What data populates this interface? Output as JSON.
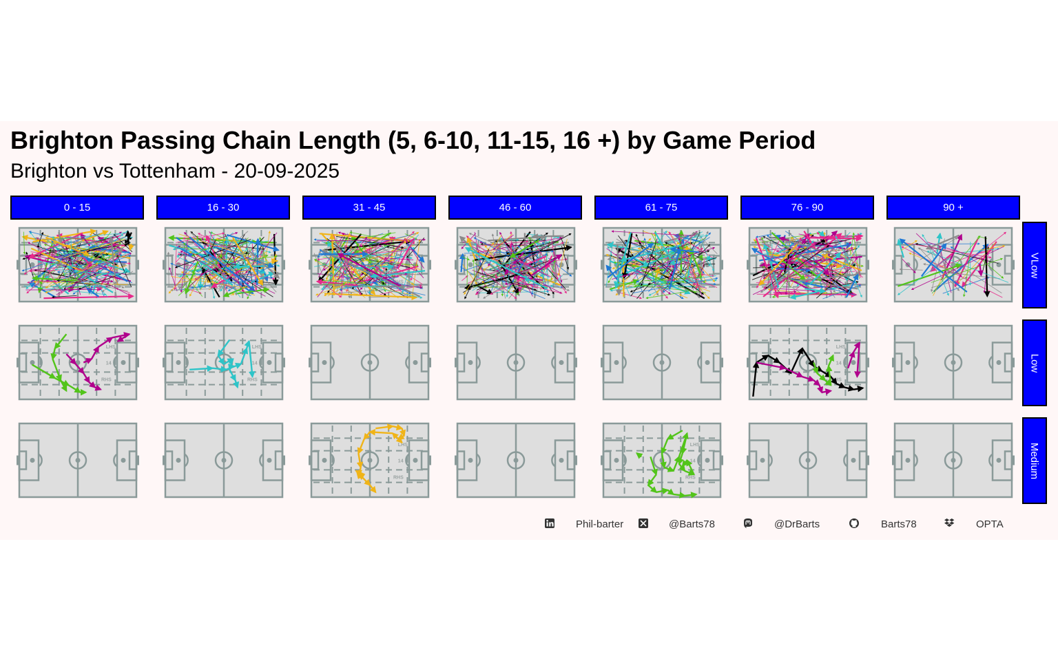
{
  "title": "Brighton Passing Chain Length (5, 6-10, 11-15, 16 +) by Game Period",
  "subtitle": "Brighton vs Tottenham - 20-09-2025",
  "colors": {
    "strip": "#0000ff",
    "pitch_fill": "#dedede",
    "pitch_line": "#8a9a99",
    "background": "#fff7f7",
    "series_palette": [
      "#e7298a",
      "#f0b418",
      "#1f78d4",
      "#2ec4c8",
      "#52c41a",
      "#b0008c",
      "#000000",
      "#8a8a8a"
    ]
  },
  "chart_data": {
    "type": "pass-map small multiples",
    "facet_columns": [
      "0 - 15",
      "16 - 30",
      "31 - 45",
      "46 - 60",
      "61 - 75",
      "76 - 90",
      "90 +"
    ],
    "facet_rows": [
      "VLow",
      "Low",
      "Medium"
    ],
    "zone_labels": {
      "left_half_space": "LHS",
      "centre": "14",
      "right_half_space": "RHS"
    },
    "x_range": [
      0,
      100
    ],
    "y_range": [
      0,
      100
    ],
    "panels": [
      {
        "row": "VLow",
        "col": "0 - 15",
        "density": "dense",
        "seed": 11
      },
      {
        "row": "VLow",
        "col": "16 - 30",
        "density": "dense",
        "seed": 23
      },
      {
        "row": "VLow",
        "col": "31 - 45",
        "density": "dense",
        "seed": 37
      },
      {
        "row": "VLow",
        "col": "46 - 60",
        "density": "dense",
        "seed": 41
      },
      {
        "row": "VLow",
        "col": "61 - 75",
        "density": "dense",
        "seed": 53
      },
      {
        "row": "VLow",
        "col": "76 - 90",
        "density": "dense",
        "seed": 67
      },
      {
        "row": "VLow",
        "col": "90 +",
        "density": "sparse",
        "seed": 79
      },
      {
        "row": "Low",
        "col": "0 - 15",
        "zones": true,
        "chains": [
          {
            "color": "#52c41a",
            "points": [
              [
                10,
                47
              ],
              [
                30,
                28
              ],
              [
                42,
                18
              ],
              [
                52,
                8
              ],
              [
                57,
                8
              ]
            ]
          },
          {
            "color": "#52c41a",
            "points": [
              [
                40,
                90
              ],
              [
                30,
                70
              ],
              [
                28,
                55
              ],
              [
                35,
                25
              ],
              [
                40,
                10
              ]
            ]
          },
          {
            "color": "#b0008c",
            "points": [
              [
                55,
                50
              ],
              [
                62,
                55
              ],
              [
                68,
                72
              ],
              [
                80,
                85
              ],
              [
                95,
                90
              ],
              [
                85,
                80
              ]
            ]
          },
          {
            "color": "#b0008c",
            "points": [
              [
                40,
                62
              ],
              [
                48,
                48
              ],
              [
                55,
                35
              ],
              [
                60,
                22
              ],
              [
                65,
                15
              ],
              [
                70,
                12
              ]
            ]
          }
        ]
      },
      {
        "row": "Low",
        "col": "16 - 30",
        "zones": true,
        "chains": [
          {
            "color": "#2ec4c8",
            "points": [
              [
                55,
                82
              ],
              [
                45,
                60
              ],
              [
                50,
                48
              ],
              [
                58,
                55
              ],
              [
                55,
                40
              ],
              [
                60,
                25
              ],
              [
                62,
                15
              ]
            ]
          },
          {
            "color": "#2ec4c8",
            "points": [
              [
                20,
                40
              ],
              [
                40,
                42
              ],
              [
                52,
                40
              ],
              [
                65,
                48
              ],
              [
                70,
                70
              ],
              [
                72,
                80
              ],
              [
                75,
                30
              ]
            ]
          }
        ]
      },
      {
        "row": "Low",
        "col": "31 - 45",
        "chains": []
      },
      {
        "row": "Low",
        "col": "46 - 60",
        "chains": []
      },
      {
        "row": "Low",
        "col": "61 - 75",
        "chains": []
      },
      {
        "row": "Low",
        "col": "76 - 90",
        "zones": true,
        "chains": [
          {
            "color": "#000000",
            "points": [
              [
                2,
                2
              ],
              [
                5,
                50
              ],
              [
                15,
                60
              ],
              [
                25,
                50
              ],
              [
                35,
                35
              ],
              [
                45,
                70
              ],
              [
                55,
                45
              ],
              [
                62,
                38
              ],
              [
                70,
                30
              ],
              [
                75,
                20
              ],
              [
                82,
                15
              ],
              [
                90,
                12
              ],
              [
                98,
                14
              ]
            ]
          },
          {
            "color": "#b0008c",
            "points": [
              [
                5,
                50
              ],
              [
                30,
                42
              ],
              [
                45,
                30
              ],
              [
                55,
                25
              ],
              [
                60,
                18
              ],
              [
                62,
                8
              ],
              [
                70,
                10
              ]
            ]
          },
          {
            "color": "#b0008c",
            "points": [
              [
                85,
                42
              ],
              [
                90,
                65
              ],
              [
                95,
                78
              ],
              [
                93,
                30
              ]
            ]
          },
          {
            "color": "#52c41a",
            "points": [
              [
                55,
                50
              ],
              [
                58,
                35
              ],
              [
                65,
                25
              ],
              [
                70,
                18
              ],
              [
                68,
                45
              ],
              [
                72,
                60
              ]
            ]
          }
        ]
      },
      {
        "row": "Low",
        "col": "90 +",
        "chains": []
      },
      {
        "row": "Medium",
        "col": "0 - 15",
        "chains": []
      },
      {
        "row": "Medium",
        "col": "16 - 30",
        "chains": []
      },
      {
        "row": "Medium",
        "col": "31 - 45",
        "zones": true,
        "chains": [
          {
            "color": "#f0b418",
            "points": [
              [
                55,
                95
              ],
              [
                70,
                98
              ],
              [
                78,
                95
              ],
              [
                80,
                85
              ],
              [
                75,
                80
              ],
              [
                78,
                75
              ],
              [
                70,
                88
              ],
              [
                50,
                90
              ],
              [
                45,
                80
              ],
              [
                40,
                60
              ],
              [
                42,
                40
              ],
              [
                40,
                25
              ],
              [
                45,
                30
              ],
              [
                38,
                35
              ],
              [
                50,
                15
              ],
              [
                55,
                5
              ]
            ]
          }
        ]
      },
      {
        "row": "Medium",
        "col": "46 - 60",
        "chains": []
      },
      {
        "row": "Medium",
        "col": "61 - 75",
        "zones": true,
        "chains": [
          {
            "color": "#52c41a",
            "points": [
              [
                68,
                92
              ],
              [
                55,
                80
              ],
              [
                50,
                60
              ],
              [
                52,
                40
              ],
              [
                60,
                35
              ],
              [
                65,
                55
              ],
              [
                72,
                88
              ],
              [
                68,
                60
              ],
              [
                65,
                45
              ],
              [
                70,
                35
              ],
              [
                78,
                30
              ],
              [
                72,
                50
              ],
              [
                68,
                42
              ]
            ]
          },
          {
            "color": "#52c41a",
            "points": [
              [
                40,
                55
              ],
              [
                45,
                30
              ],
              [
                38,
                15
              ],
              [
                45,
                5
              ],
              [
                55,
                8
              ],
              [
                60,
                2
              ],
              [
                70,
                0
              ],
              [
                80,
                2
              ]
            ]
          },
          {
            "color": "#52c41a",
            "points": [
              [
                32,
                55
              ],
              [
                28,
                60
              ]
            ]
          }
        ]
      },
      {
        "row": "Medium",
        "col": "76 - 90",
        "chains": []
      },
      {
        "row": "Medium",
        "col": "90 +",
        "chains": []
      }
    ]
  },
  "footer": {
    "items": [
      {
        "icon": "linkedin-icon",
        "label": "Phil-barter"
      },
      {
        "icon": "x-icon",
        "label": "@Barts78"
      },
      {
        "icon": "mastodon-icon",
        "label": "@DrBarts"
      },
      {
        "icon": "github-icon",
        "label": "Barts78"
      },
      {
        "icon": "dropbox-icon",
        "label": "OPTA"
      }
    ]
  }
}
